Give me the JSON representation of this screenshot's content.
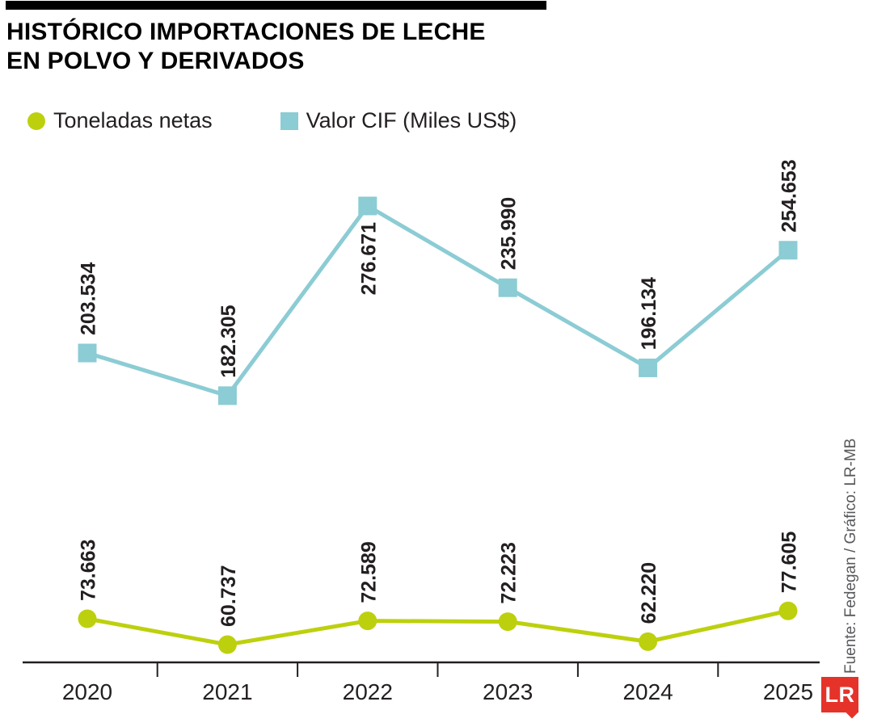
{
  "header": {
    "title_line1": "HISTÓRICO IMPORTACIONES DE LECHE",
    "title_line2": "EN POLVO Y DERIVADOS"
  },
  "legend": {
    "items": [
      {
        "label": "Toneladas netas",
        "marker": "circle",
        "color": "#bdd00e"
      },
      {
        "label": "Valor CIF (Miles US$)",
        "marker": "square",
        "color": "#8cccd4"
      }
    ],
    "position": "top"
  },
  "source": "Fuente: Fedegan / Gráfico: LR-MB",
  "logo": {
    "text": "LR",
    "color": "#e5332a"
  },
  "colors": {
    "toneladas_netas": "#bdd00e",
    "valor_cif": "#8cccd4",
    "axis": "#231f20",
    "labels": "#231f20",
    "logo_red": "#e5332a"
  },
  "chart_data": {
    "type": "line",
    "title": "Histórico importaciones de leche en polvo y derivados",
    "categories": [
      "2020",
      "2021",
      "2022",
      "2023",
      "2024",
      "2025"
    ],
    "series": [
      {
        "name": "Valor CIF (Miles US$)",
        "marker": "square",
        "color": "#8cccd4",
        "values": [
          203534,
          182305,
          276671,
          235990,
          196134,
          254653
        ],
        "labels": [
          "203.534",
          "182.305",
          "276.671",
          "235.990",
          "196.134",
          "254.653"
        ]
      },
      {
        "name": "Toneladas netas",
        "marker": "circle",
        "color": "#bdd00e",
        "values": [
          73663,
          60737,
          72589,
          72223,
          62220,
          77605
        ],
        "labels": [
          "73.663",
          "60.737",
          "72.589",
          "72.223",
          "62.220",
          "77.605"
        ]
      }
    ],
    "xlabel": "",
    "ylabel": "",
    "grid": false,
    "y_axis_visible": false,
    "data_labels_rotated": true,
    "legend_position": "top"
  }
}
